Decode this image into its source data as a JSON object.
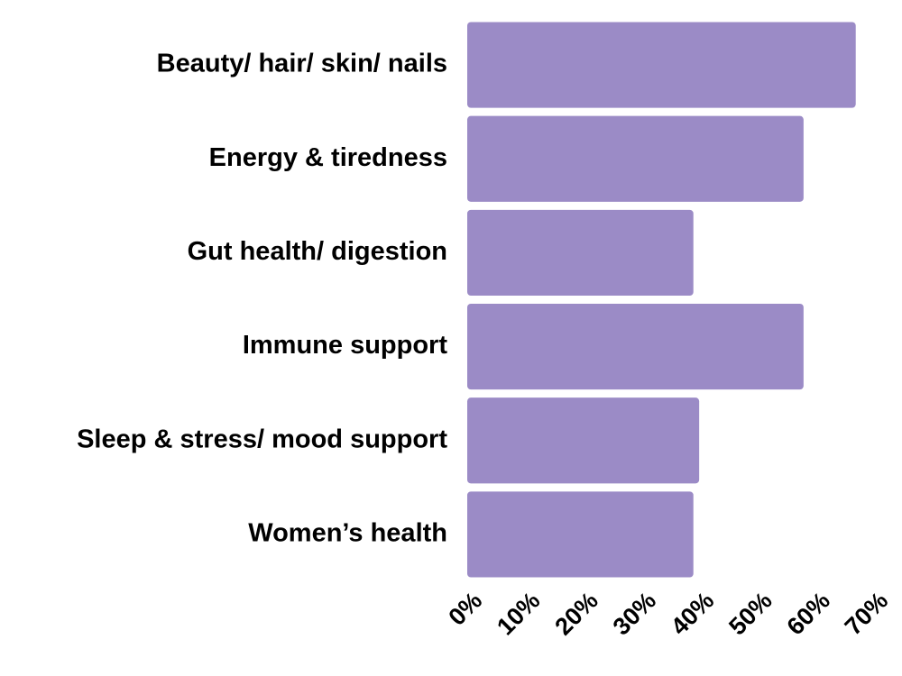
{
  "chart_data": {
    "type": "barh",
    "categories": [
      "Beauty/ hair/ skin/ nails",
      "Energy & tiredness",
      "Gut health/ digestion",
      "Immune support",
      "Sleep & stress/ mood support",
      "Women’s health"
    ],
    "values": [
      67,
      58,
      39,
      58,
      40,
      39
    ],
    "color": "#9b8bc6",
    "xlim": [
      0,
      70
    ],
    "xticks": [
      {
        "value": 0,
        "label": "0%"
      },
      {
        "value": 10,
        "label": "10%"
      },
      {
        "value": 20,
        "label": "20%"
      },
      {
        "value": 30,
        "label": "30%"
      },
      {
        "value": 40,
        "label": "40%"
      },
      {
        "value": 50,
        "label": "50%"
      },
      {
        "value": 60,
        "label": "60%"
      },
      {
        "value": 70,
        "label": "70%"
      }
    ],
    "grid": false
  }
}
